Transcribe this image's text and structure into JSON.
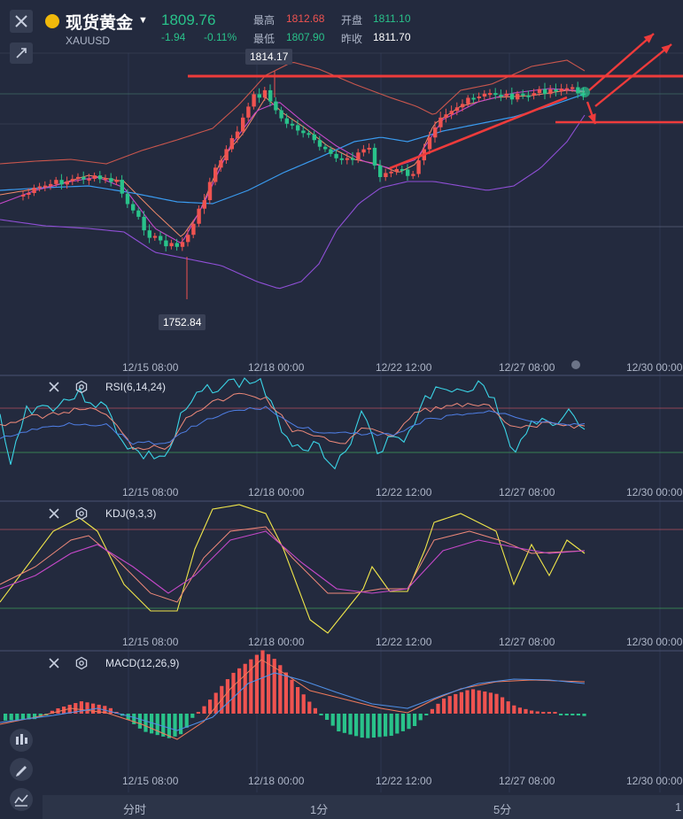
{
  "header": {
    "symbol": "现货黄金",
    "code": "XAUUSD",
    "last_price": "1809.76",
    "change": "-1.94",
    "change_pct": "-0.11%",
    "high_label": "最高",
    "high_value": "1812.68",
    "open_label": "开盘",
    "open_value": "1811.10",
    "low_label": "最低",
    "low_value": "1807.90",
    "prev_close_label": "昨收",
    "prev_close_value": "1811.70"
  },
  "price_chart": {
    "max_tag": "1814.17",
    "min_tag": "1752.84",
    "x_ticks": [
      "12/15 08:00",
      "12/18 00:00",
      "12/22 12:00",
      "12/27 08:00",
      "12/30 00:00"
    ]
  },
  "indicators": {
    "rsi": "RSI(6,14,24)",
    "kdj": "KDJ(9,3,3)",
    "macd": "MACD(12,26,9)"
  },
  "tabs": [
    "分时",
    "1分",
    "5分",
    "1"
  ],
  "colors": {
    "up": "#ef5350",
    "down": "#29c28a",
    "background": "#232a3e"
  },
  "icons": {
    "close": "close-icon",
    "pin": "pin-icon",
    "settings": "gear-icon",
    "indicator_style": "candle-icon",
    "draw": "pencil-icon",
    "line": "line-chart-icon"
  }
}
